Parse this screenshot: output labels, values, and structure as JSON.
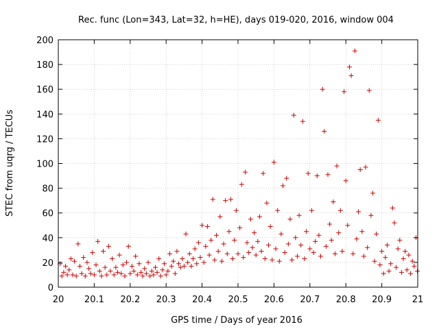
{
  "chart_data": {
    "type": "scatter",
    "title": "Rec. func (Lon=343, Lat=32, h=HE), days 019-020, 2016, window 004",
    "xlabel": "GPS time / Days of year 2016",
    "ylabel": "STEC from uqrg / TECUs",
    "xlim": [
      20,
      21
    ],
    "ylim": [
      0,
      200
    ],
    "xticks": [
      "20",
      "20.1",
      "20.2",
      "20.3",
      "20.4",
      "20.5",
      "20.6",
      "20.7",
      "20.8",
      "20.9",
      "21"
    ],
    "yticks": [
      "0",
      "20",
      "40",
      "60",
      "80",
      "100",
      "120",
      "140",
      "160",
      "180",
      "200"
    ],
    "marker": "+",
    "grid": true,
    "series": [
      {
        "name": "STEC",
        "color": "#cc0000",
        "points": [
          [
            20.005,
            19
          ],
          [
            20.01,
            9
          ],
          [
            20.015,
            12
          ],
          [
            20.02,
            17
          ],
          [
            20.025,
            10
          ],
          [
            20.03,
            14
          ],
          [
            20.035,
            23
          ],
          [
            20.04,
            10
          ],
          [
            20.045,
            21
          ],
          [
            20.05,
            9
          ],
          [
            20.055,
            35
          ],
          [
            20.06,
            17
          ],
          [
            20.065,
            11
          ],
          [
            20.07,
            24
          ],
          [
            20.075,
            9
          ],
          [
            20.08,
            20
          ],
          [
            20.085,
            15
          ],
          [
            20.09,
            11
          ],
          [
            20.095,
            28
          ],
          [
            20.1,
            10
          ],
          [
            20.105,
            18
          ],
          [
            20.11,
            37
          ],
          [
            20.115,
            13
          ],
          [
            20.12,
            9
          ],
          [
            20.125,
            29
          ],
          [
            20.13,
            16
          ],
          [
            20.135,
            10
          ],
          [
            20.14,
            33
          ],
          [
            20.145,
            13
          ],
          [
            20.15,
            23
          ],
          [
            20.155,
            10
          ],
          [
            20.16,
            16
          ],
          [
            20.165,
            12
          ],
          [
            20.17,
            26
          ],
          [
            20.175,
            11
          ],
          [
            20.18,
            18
          ],
          [
            20.185,
            9
          ],
          [
            20.19,
            20
          ],
          [
            20.195,
            33
          ],
          [
            20.2,
            11
          ],
          [
            20.205,
            17
          ],
          [
            20.21,
            13
          ],
          [
            20.215,
            25
          ],
          [
            20.22,
            10
          ],
          [
            20.225,
            19
          ],
          [
            20.23,
            12
          ],
          [
            20.235,
            9
          ],
          [
            20.24,
            15
          ],
          [
            20.245,
            11
          ],
          [
            20.25,
            20
          ],
          [
            20.255,
            9
          ],
          [
            20.26,
            13
          ],
          [
            20.265,
            10
          ],
          [
            20.27,
            16
          ],
          [
            20.275,
            12
          ],
          [
            20.28,
            23
          ],
          [
            20.285,
            9
          ],
          [
            20.29,
            14
          ],
          [
            20.295,
            19
          ],
          [
            20.3,
            10
          ],
          [
            20.305,
            13
          ],
          [
            20.31,
            27
          ],
          [
            20.315,
            17
          ],
          [
            20.32,
            21
          ],
          [
            20.325,
            11
          ],
          [
            20.33,
            29
          ],
          [
            20.335,
            19
          ],
          [
            20.34,
            16
          ],
          [
            20.345,
            23
          ],
          [
            20.35,
            17
          ],
          [
            20.355,
            43
          ],
          [
            20.36,
            20
          ],
          [
            20.365,
            27
          ],
          [
            20.37,
            17
          ],
          [
            20.375,
            23
          ],
          [
            20.38,
            31
          ],
          [
            20.385,
            19
          ],
          [
            20.39,
            36
          ],
          [
            20.395,
            24
          ],
          [
            20.4,
            50
          ],
          [
            20.405,
            20
          ],
          [
            20.41,
            33
          ],
          [
            20.415,
            49
          ],
          [
            20.42,
            26
          ],
          [
            20.425,
            38
          ],
          [
            20.43,
            71
          ],
          [
            20.435,
            22
          ],
          [
            20.44,
            42
          ],
          [
            20.445,
            29
          ],
          [
            20.45,
            57
          ],
          [
            20.455,
            21
          ],
          [
            20.46,
            35
          ],
          [
            20.465,
            70
          ],
          [
            20.47,
            27
          ],
          [
            20.475,
            45
          ],
          [
            20.48,
            71
          ],
          [
            20.485,
            23
          ],
          [
            20.49,
            38
          ],
          [
            20.495,
            62
          ],
          [
            20.5,
            27
          ],
          [
            20.505,
            48
          ],
          [
            20.51,
            83
          ],
          [
            20.515,
            24
          ],
          [
            20.52,
            93
          ],
          [
            20.525,
            36
          ],
          [
            20.53,
            28
          ],
          [
            20.535,
            55
          ],
          [
            20.54,
            32
          ],
          [
            20.545,
            44
          ],
          [
            20.55,
            26
          ],
          [
            20.555,
            37
          ],
          [
            20.56,
            57
          ],
          [
            20.565,
            29
          ],
          [
            20.57,
            92
          ],
          [
            20.575,
            23
          ],
          [
            20.58,
            68
          ],
          [
            20.585,
            34
          ],
          [
            20.59,
            49
          ],
          [
            20.595,
            22
          ],
          [
            20.6,
            101
          ],
          [
            20.605,
            31
          ],
          [
            20.61,
            62
          ],
          [
            20.615,
            21
          ],
          [
            20.62,
            43
          ],
          [
            20.625,
            82
          ],
          [
            20.63,
            28
          ],
          [
            20.635,
            88
          ],
          [
            20.64,
            35
          ],
          [
            20.645,
            55
          ],
          [
            20.65,
            22
          ],
          [
            20.655,
            139
          ],
          [
            20.66,
            40
          ],
          [
            20.665,
            25
          ],
          [
            20.67,
            58
          ],
          [
            20.675,
            34
          ],
          [
            20.68,
            134
          ],
          [
            20.685,
            23
          ],
          [
            20.69,
            45
          ],
          [
            20.695,
            92
          ],
          [
            20.7,
            31
          ],
          [
            20.705,
            62
          ],
          [
            20.71,
            28
          ],
          [
            20.715,
            37
          ],
          [
            20.72,
            90
          ],
          [
            20.725,
            42
          ],
          [
            20.73,
            25
          ],
          [
            20.735,
            160
          ],
          [
            20.74,
            126
          ],
          [
            20.745,
            33
          ],
          [
            20.75,
            91
          ],
          [
            20.755,
            51
          ],
          [
            20.76,
            38
          ],
          [
            20.765,
            69
          ],
          [
            20.77,
            27
          ],
          [
            20.775,
            98
          ],
          [
            20.78,
            44
          ],
          [
            20.785,
            62
          ],
          [
            20.79,
            29
          ],
          [
            20.795,
            158
          ],
          [
            20.8,
            86
          ],
          [
            20.805,
            50
          ],
          [
            20.81,
            178
          ],
          [
            20.815,
            171
          ],
          [
            20.82,
            27
          ],
          [
            20.825,
            191
          ],
          [
            20.83,
            39
          ],
          [
            20.835,
            61
          ],
          [
            20.84,
            95
          ],
          [
            20.845,
            45
          ],
          [
            20.85,
            25
          ],
          [
            20.855,
            97
          ],
          [
            20.86,
            32
          ],
          [
            20.865,
            159
          ],
          [
            20.87,
            58
          ],
          [
            20.875,
            76
          ],
          [
            20.88,
            21
          ],
          [
            20.885,
            43
          ],
          [
            20.89,
            135
          ],
          [
            20.895,
            18
          ],
          [
            20.9,
            29
          ],
          [
            20.905,
            11
          ],
          [
            20.91,
            24
          ],
          [
            20.915,
            34
          ],
          [
            20.92,
            13
          ],
          [
            20.925,
            19
          ],
          [
            20.93,
            64
          ],
          [
            20.935,
            52
          ],
          [
            20.94,
            16
          ],
          [
            20.945,
            31
          ],
          [
            20.95,
            38
          ],
          [
            20.955,
            12
          ],
          [
            20.96,
            23
          ],
          [
            20.965,
            29
          ],
          [
            20.97,
            14
          ],
          [
            20.975,
            26
          ],
          [
            20.98,
            11
          ],
          [
            20.985,
            21
          ],
          [
            20.99,
            17
          ],
          [
            20.995,
            40
          ],
          [
            20.999,
            13
          ]
        ]
      }
    ]
  }
}
